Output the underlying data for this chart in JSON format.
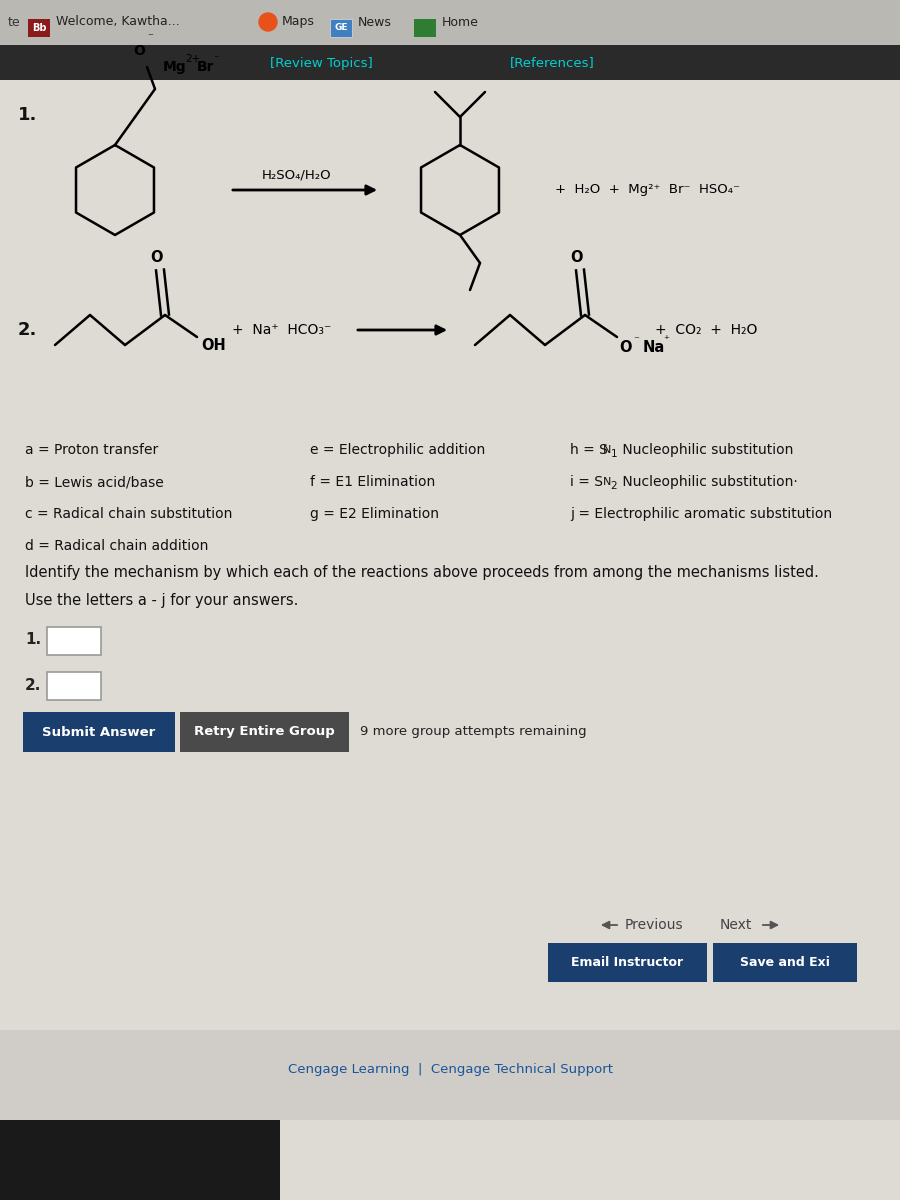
{
  "bg_color": "#cccac4",
  "toolbar_bg": "#bab8b2",
  "nav_bar_bg": "#2a2a2a",
  "nav_bar_color": "#00d0d0",
  "content_bg": "#dedad4",
  "reaction1_reagent": "H₂SO₄/H₂O",
  "mechanisms_col1": [
    "a = Proton transfer",
    "b = Lewis acid/base",
    "c = Radical chain substitution",
    "d = Radical chain addition"
  ],
  "mechanisms_col2": [
    "e = Electrophilic addition",
    "f = E1 Elimination",
    "g = E2 Elimination",
    ""
  ],
  "mechanisms_col3": [
    "h = S@@N@@1 Nucleophilic substitution",
    "i = S@@N@@2 Nucleophilic substitution·",
    "j = Electrophilic aromatic substitution",
    ""
  ],
  "instruction_line1": "Identify the mechanism by which each of the reactions above proceeds from among the mechanisms listed.",
  "instruction_line2": "Use the letters a - j for your answers.",
  "button1_text": "Submit Answer",
  "button2_text": "Retry Entire Group",
  "attempts_text": "9 more group attempts remaining",
  "nav_bottom_left": "Previous",
  "nav_bottom_right": "Next",
  "bottom_buttons": [
    "Email Instructor",
    "Save and Exi"
  ],
  "footer_text": "Cengage Learning  |  Cengage Technical Support",
  "bb_color": "#8B1A1A",
  "submit_btn_color": "#1a3f6f",
  "retry_btn_color": "#4a4a4a",
  "email_btn_color": "#1a3f6f",
  "save_btn_color": "#1a3f6f"
}
